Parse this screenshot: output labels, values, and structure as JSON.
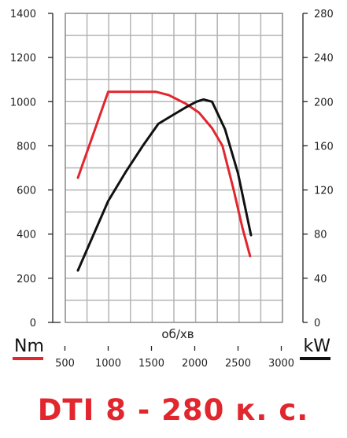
{
  "chart_data": {
    "type": "line",
    "title": "DTI 8 - 280 к. с.",
    "xlabel": "об/хв",
    "x_ticks": [
      500,
      1000,
      1500,
      2000,
      2500,
      3000
    ],
    "xlim": [
      500,
      3000
    ],
    "left_axis": {
      "label": "Nm",
      "ticks": [
        0,
        200,
        400,
        600,
        800,
        1000,
        1200,
        1400
      ],
      "ylim": [
        0,
        1400
      ],
      "color": "#e1262d"
    },
    "right_axis": {
      "label": "kW",
      "ticks": [
        0,
        40,
        80,
        120,
        160,
        200,
        240,
        280
      ],
      "ylim": [
        0,
        280
      ],
      "color": "#111111"
    },
    "grid": true,
    "series": [
      {
        "axis": "left",
        "color": "#e1262d",
        "points": [
          [
            650,
            655
          ],
          [
            1000,
            1045
          ],
          [
            1200,
            1045
          ],
          [
            1400,
            1045
          ],
          [
            1550,
            1045
          ],
          [
            1700,
            1030
          ],
          [
            1900,
            990
          ],
          [
            2050,
            950
          ],
          [
            2200,
            880
          ],
          [
            2320,
            800
          ],
          [
            2450,
            600
          ],
          [
            2550,
            430
          ],
          [
            2640,
            300
          ]
        ]
      },
      {
        "axis": "right",
        "color": "#111111",
        "points": [
          [
            650,
            47
          ],
          [
            1000,
            110
          ],
          [
            1200,
            136
          ],
          [
            1400,
            160
          ],
          [
            1580,
            180
          ],
          [
            1750,
            188
          ],
          [
            1900,
            195
          ],
          [
            2020,
            200
          ],
          [
            2100,
            202
          ],
          [
            2200,
            200
          ],
          [
            2350,
            175
          ],
          [
            2500,
            135
          ],
          [
            2650,
            79
          ]
        ]
      }
    ]
  }
}
